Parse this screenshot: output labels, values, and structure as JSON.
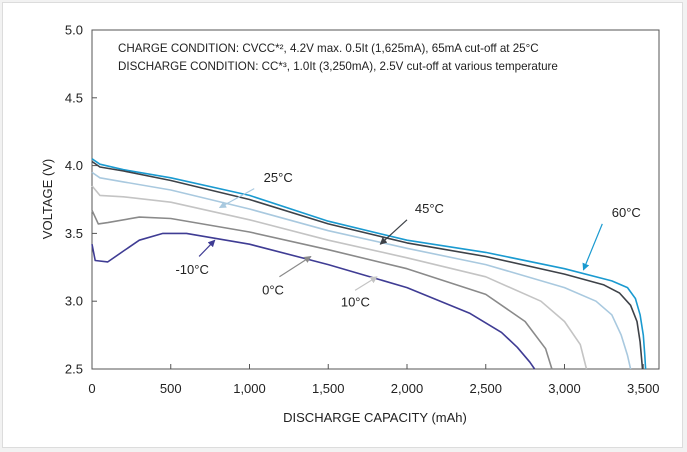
{
  "chart_data": {
    "type": "line",
    "title": "",
    "annotations": [
      "CHARGE CONDITION: CVCC*², 4.2V max. 0.5It (1,625mA), 65mA cut-off at 25°C",
      "DISCHARGE CONDITION: CC*³, 1.0It (3,250mA), 2.5V cut-off at various temperature"
    ],
    "xlabel": "DISCHARGE CAPACITY (mAh)",
    "ylabel": "VOLTAGE (V)",
    "xlim": [
      0,
      3600
    ],
    "ylim": [
      2.5,
      5.0
    ],
    "x_ticks": [
      0,
      500,
      1000,
      1500,
      2000,
      2500,
      3000,
      3500
    ],
    "x_tick_labels": [
      "0",
      "500",
      "1,000",
      "1,500",
      "2,000",
      "2,500",
      "3,000",
      "3,500"
    ],
    "y_ticks": [
      2.5,
      3.0,
      3.5,
      4.0,
      4.5,
      5.0
    ],
    "y_tick_labels": [
      "2.5",
      "3.0",
      "3.5",
      "4.0",
      "4.5",
      "5.0"
    ],
    "grid": "none",
    "legend": "inline labels",
    "series": [
      {
        "name": "60°C",
        "color": "#1a9ad0",
        "points": [
          [
            0,
            4.05
          ],
          [
            50,
            4.01
          ],
          [
            200,
            3.97
          ],
          [
            500,
            3.91
          ],
          [
            1000,
            3.78
          ],
          [
            1500,
            3.59
          ],
          [
            2000,
            3.45
          ],
          [
            2500,
            3.36
          ],
          [
            3000,
            3.24
          ],
          [
            3300,
            3.15
          ],
          [
            3400,
            3.1
          ],
          [
            3450,
            3.02
          ],
          [
            3480,
            2.9
          ],
          [
            3500,
            2.75
          ],
          [
            3510,
            2.6
          ],
          [
            3515,
            2.5
          ]
        ]
      },
      {
        "name": "45°C",
        "color": "#3e4248",
        "points": [
          [
            0,
            4.03
          ],
          [
            50,
            3.99
          ],
          [
            200,
            3.96
          ],
          [
            500,
            3.89
          ],
          [
            1000,
            3.75
          ],
          [
            1500,
            3.57
          ],
          [
            2000,
            3.43
          ],
          [
            2500,
            3.33
          ],
          [
            3000,
            3.2
          ],
          [
            3250,
            3.12
          ],
          [
            3350,
            3.06
          ],
          [
            3420,
            2.97
          ],
          [
            3460,
            2.85
          ],
          [
            3480,
            2.7
          ],
          [
            3495,
            2.5
          ]
        ]
      },
      {
        "name": "25°C",
        "color": "#a9c9df",
        "points": [
          [
            0,
            3.95
          ],
          [
            50,
            3.91
          ],
          [
            200,
            3.88
          ],
          [
            500,
            3.82
          ],
          [
            1000,
            3.68
          ],
          [
            1500,
            3.52
          ],
          [
            2000,
            3.39
          ],
          [
            2500,
            3.27
          ],
          [
            3000,
            3.1
          ],
          [
            3200,
            3.0
          ],
          [
            3300,
            2.9
          ],
          [
            3360,
            2.75
          ],
          [
            3400,
            2.6
          ],
          [
            3420,
            2.5
          ]
        ]
      },
      {
        "name": "10°C",
        "color": "#c4c4c4",
        "points": [
          [
            0,
            3.85
          ],
          [
            50,
            3.78
          ],
          [
            200,
            3.77
          ],
          [
            500,
            3.73
          ],
          [
            1000,
            3.6
          ],
          [
            1500,
            3.45
          ],
          [
            2000,
            3.32
          ],
          [
            2500,
            3.18
          ],
          [
            2850,
            3.0
          ],
          [
            3000,
            2.85
          ],
          [
            3100,
            2.68
          ],
          [
            3140,
            2.5
          ]
        ]
      },
      {
        "name": "0°C",
        "color": "#8a8a8a",
        "points": [
          [
            0,
            3.67
          ],
          [
            40,
            3.57
          ],
          [
            100,
            3.58
          ],
          [
            300,
            3.62
          ],
          [
            500,
            3.61
          ],
          [
            1000,
            3.51
          ],
          [
            1500,
            3.38
          ],
          [
            2000,
            3.24
          ],
          [
            2500,
            3.05
          ],
          [
            2750,
            2.85
          ],
          [
            2880,
            2.65
          ],
          [
            2920,
            2.5
          ]
        ]
      },
      {
        "name": "-10°C",
        "color": "#3f3c94",
        "points": [
          [
            0,
            3.42
          ],
          [
            20,
            3.3
          ],
          [
            100,
            3.29
          ],
          [
            200,
            3.37
          ],
          [
            300,
            3.45
          ],
          [
            450,
            3.5
          ],
          [
            600,
            3.5
          ],
          [
            1000,
            3.42
          ],
          [
            1500,
            3.27
          ],
          [
            2000,
            3.1
          ],
          [
            2400,
            2.91
          ],
          [
            2600,
            2.77
          ],
          [
            2700,
            2.66
          ],
          [
            2780,
            2.55
          ],
          [
            2810,
            2.5
          ]
        ]
      }
    ],
    "series_labels": [
      {
        "name": "60°C",
        "text": "60°C",
        "at": [
          3300,
          3.62
        ],
        "pointer": [
          [
            3240,
            3.57
          ],
          [
            3120,
            3.23
          ]
        ]
      },
      {
        "name": "45°C",
        "text": "45°C",
        "at": [
          2050,
          3.65
        ],
        "pointer": [
          [
            2000,
            3.6
          ],
          [
            1830,
            3.42
          ]
        ]
      },
      {
        "name": "25°C",
        "text": "25°C",
        "at": [
          1090,
          3.88
        ],
        "pointer": [
          [
            1030,
            3.83
          ],
          [
            810,
            3.69
          ]
        ]
      },
      {
        "name": "10°C",
        "text": "10°C",
        "at": [
          1580,
          2.96
        ],
        "pointer": [
          [
            1670,
            3.08
          ],
          [
            1810,
            3.18
          ]
        ]
      },
      {
        "name": "0°C",
        "text": "0°C",
        "at": [
          1080,
          3.05
        ],
        "pointer": [
          [
            1190,
            3.18
          ],
          [
            1390,
            3.33
          ]
        ]
      },
      {
        "name": "-10°C",
        "text": "-10°C",
        "at": [
          530,
          3.2
        ],
        "pointer": [
          [
            680,
            3.33
          ],
          [
            780,
            3.45
          ]
        ]
      }
    ]
  }
}
